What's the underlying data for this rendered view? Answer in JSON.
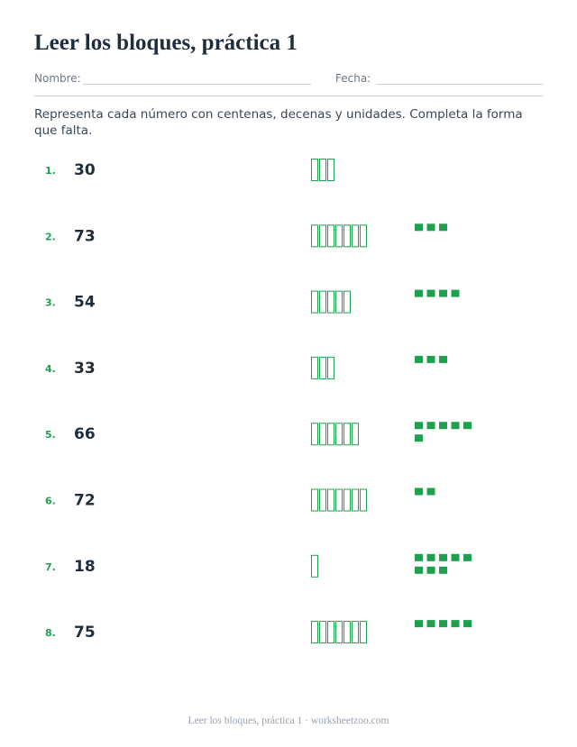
{
  "header": {
    "title": "Leer los bloques, práctica 1",
    "name_label": "Nombre:",
    "date_label": "Fecha:"
  },
  "instructions": "Representa cada número con centenas, decenas y unidades. Completa la forma que falta.",
  "problems": [
    {
      "label": "1.",
      "number": 30
    },
    {
      "label": "2.",
      "number": 73
    },
    {
      "label": "3.",
      "number": 54
    },
    {
      "label": "4.",
      "number": 33
    },
    {
      "label": "5.",
      "number": 66
    },
    {
      "label": "6.",
      "number": 72
    },
    {
      "label": "7.",
      "number": 18
    },
    {
      "label": "8.",
      "number": 75
    }
  ],
  "footer": "Leer los bloques, práctica 1 · worksheetzoo.com"
}
